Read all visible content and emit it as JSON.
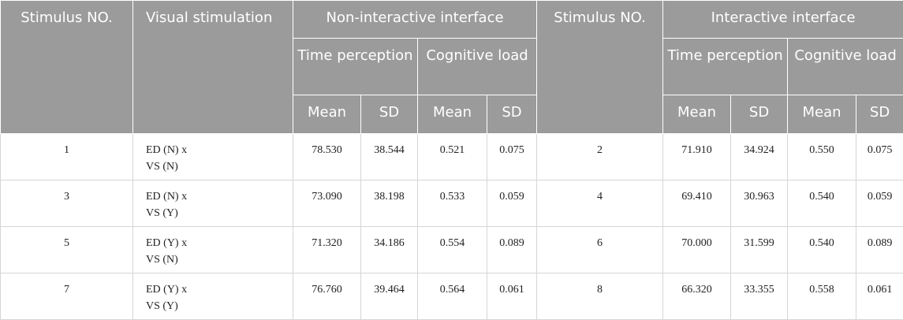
{
  "table": {
    "header": {
      "stimulus_no_1": "Stimulus NO.",
      "visual_stimulation": "Visual stimulation",
      "non_interactive": "Non-interactive interface",
      "stimulus_no_2": "Stimulus NO.",
      "interactive": "Interactive interface",
      "groups": [
        "Time perception",
        "Cognitive load",
        "Time perception",
        "Cognitive load"
      ],
      "stats": [
        "Mean",
        "SD",
        "Mean",
        "SD",
        "Mean",
        "SD",
        "Mean",
        "SD"
      ]
    },
    "rows": [
      [
        "1",
        "ED (N) x\nVS (N)",
        "78.530",
        "38.544",
        "0.521",
        "0.075",
        "2",
        "71.910",
        "34.924",
        "0.550",
        "0.075"
      ],
      [
        "3",
        "ED (N) x\nVS (Y)",
        "73.090",
        "38.198",
        "0.533",
        "0.059",
        "4",
        "69.410",
        "30.963",
        "0.540",
        "0.059"
      ],
      [
        "5",
        "ED (Y) x\nVS (N)",
        "71.320",
        "34.186",
        "0.554",
        "0.089",
        "6",
        "70.000",
        "31.599",
        "0.540",
        "0.089"
      ],
      [
        "7",
        "ED (Y) x\nVS (Y)",
        "76.760",
        "39.464",
        "0.564",
        "0.061",
        "8",
        "66.320",
        "33.355",
        "0.558",
        "0.061"
      ]
    ]
  }
}
